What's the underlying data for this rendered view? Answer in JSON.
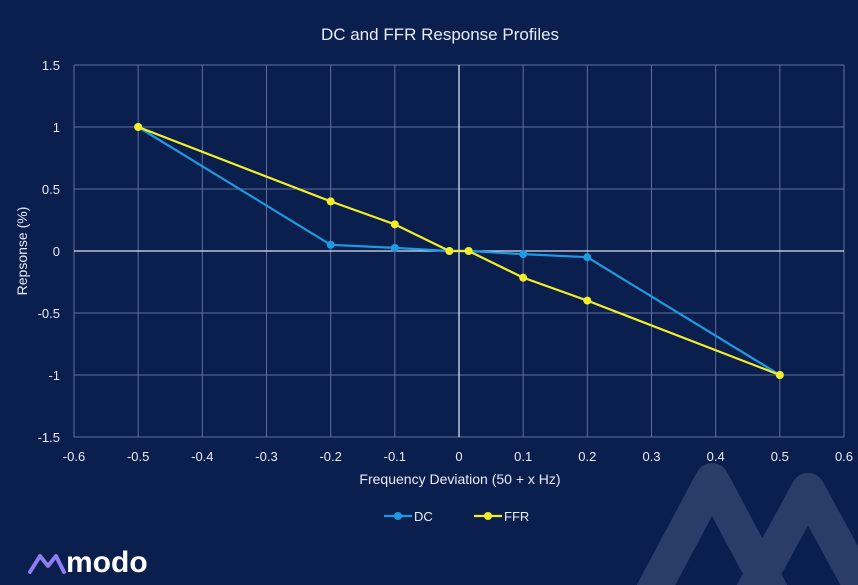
{
  "chart_data": {
    "type": "line",
    "title": "DC and FFR Response Profiles",
    "xlabel": "Frequency Deviation (50 + x Hz)",
    "ylabel": "Repsonse (%)",
    "xlim": [
      -0.6,
      0.6
    ],
    "ylim": [
      -1.5,
      1.5
    ],
    "x_ticks": [
      "-0.6",
      "-0.5",
      "-0.4",
      "-0.3",
      "-0.2",
      "-0.1",
      "0",
      "0.1",
      "0.2",
      "0.3",
      "0.4",
      "0.5",
      "0.6"
    ],
    "y_ticks": [
      "1.5",
      "1",
      "0.5",
      "0",
      "-0.5",
      "-1",
      "-1.5"
    ],
    "grid": true,
    "legend_position": "bottom",
    "series": [
      {
        "name": "DC",
        "color": "#1e9be0",
        "points": [
          [
            -0.5,
            1
          ],
          [
            -0.2,
            0.05
          ],
          [
            -0.1,
            0.025
          ],
          [
            -0.015,
            0
          ],
          [
            0.015,
            0
          ],
          [
            0.1,
            -0.025
          ],
          [
            0.2,
            -0.05
          ],
          [
            0.5,
            -1
          ]
        ]
      },
      {
        "name": "FFR",
        "color": "#f3ee2a",
        "points": [
          [
            -0.5,
            1
          ],
          [
            -0.2,
            0.4
          ],
          [
            -0.1,
            0.215
          ],
          [
            -0.015,
            0
          ],
          [
            0.015,
            0
          ],
          [
            0.1,
            -0.215
          ],
          [
            0.2,
            -0.4
          ],
          [
            0.5,
            -1
          ]
        ]
      }
    ]
  },
  "brand": {
    "logo_text": "modo",
    "logo_icon": "modo-wave-icon",
    "accent": "#8e7cf0"
  }
}
